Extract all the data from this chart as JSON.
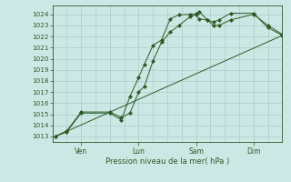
{
  "background_color": "#cce8e4",
  "grid_color": "#aaccc8",
  "line_color": "#2d5a27",
  "ylim": [
    1012.5,
    1024.8
  ],
  "yticks": [
    1013,
    1014,
    1015,
    1016,
    1017,
    1018,
    1019,
    1020,
    1021,
    1022,
    1023,
    1024
  ],
  "xlim": [
    0.0,
    4.0
  ],
  "xtick_positions": [
    0.5,
    1.5,
    2.5,
    3.5
  ],
  "xtick_labels": [
    "Ven",
    "Lun",
    "Sam",
    "Dim"
  ],
  "vline_positions": [
    0.5,
    1.5,
    2.5,
    3.5
  ],
  "xlabel": "Pression niveau de la mer( hPa )",
  "line1_x": [
    0.05,
    0.25,
    0.5,
    1.0,
    1.2,
    1.35,
    1.5,
    1.6,
    1.75,
    1.9,
    2.05,
    2.2,
    2.4,
    2.5,
    2.55,
    2.7,
    2.8,
    2.9,
    3.1,
    3.5,
    3.75,
    4.0
  ],
  "line1_y": [
    1013.0,
    1013.4,
    1015.1,
    1015.1,
    1014.5,
    1016.6,
    1018.3,
    1019.5,
    1021.2,
    1021.7,
    1023.6,
    1023.95,
    1024.0,
    1024.05,
    1024.25,
    1023.5,
    1023.3,
    1023.5,
    1024.1,
    1024.1,
    1022.8,
    1022.1
  ],
  "line2_x": [
    0.05,
    0.25,
    0.5,
    1.0,
    1.2,
    1.35,
    1.5,
    1.6,
    1.75,
    1.9,
    2.05,
    2.2,
    2.4,
    2.5,
    2.55,
    2.7,
    2.8,
    2.9,
    3.1,
    3.5,
    3.75,
    4.0
  ],
  "line2_y": [
    1013.0,
    1013.5,
    1015.2,
    1015.2,
    1014.7,
    1015.1,
    1017.0,
    1017.5,
    1019.8,
    1021.5,
    1022.4,
    1023.0,
    1023.8,
    1023.95,
    1023.6,
    1023.5,
    1023.0,
    1023.0,
    1023.5,
    1024.0,
    1023.0,
    1022.2
  ],
  "line3_x": [
    0.05,
    4.0
  ],
  "line3_y": [
    1013.0,
    1022.1
  ]
}
